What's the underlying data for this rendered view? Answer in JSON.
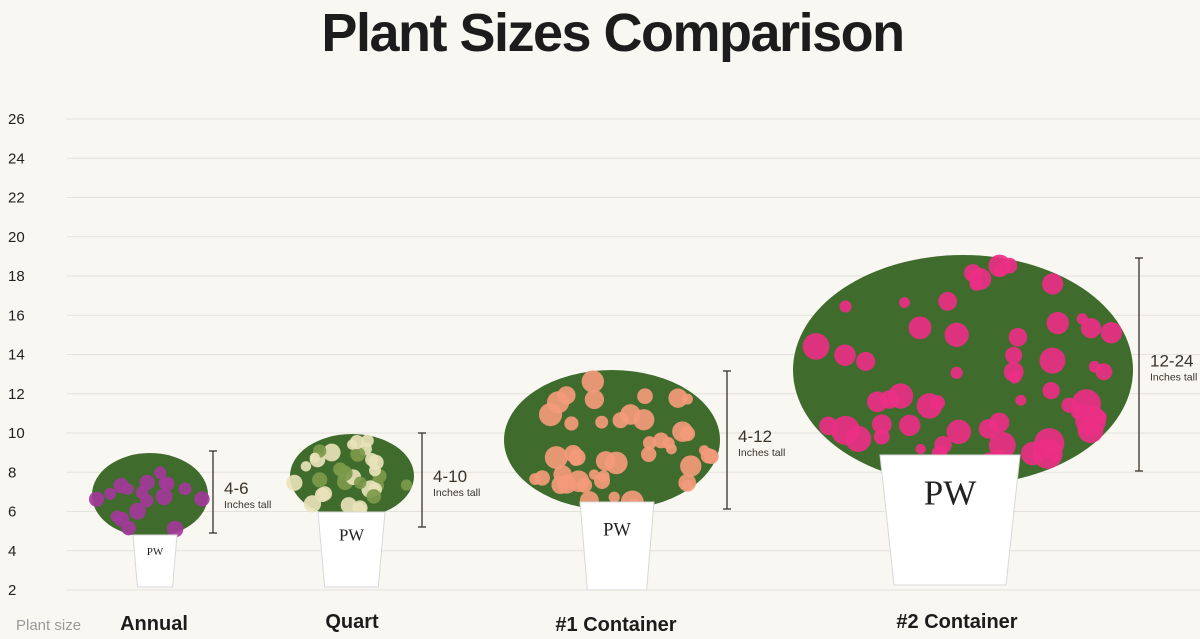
{
  "title": "Plant Sizes Comparison",
  "axis_label": "Plant size",
  "chart_data": {
    "type": "range",
    "title": "Plant Sizes Comparison",
    "xlabel": "Plant size",
    "ylabel": "",
    "y_ticks": [
      2,
      4,
      6,
      8,
      10,
      12,
      14,
      16,
      18,
      20,
      22,
      24,
      26
    ],
    "ylim": [
      2,
      26
    ],
    "grid": true,
    "unit_label": "Inches tall",
    "categories": [
      "Annual",
      "Quart",
      "#1 Container",
      "#2 Container"
    ],
    "ranges": [
      {
        "label": "4-6",
        "low": 4,
        "high": 6
      },
      {
        "label": "4-10",
        "low": 4,
        "high": 10
      },
      {
        "label": "4-12",
        "low": 4,
        "high": 12
      },
      {
        "label": "12-24",
        "low": 12,
        "high": 24
      }
    ],
    "bracket_color": "#3a3328",
    "flower_colors": [
      "#a23a9a",
      "#e9e2b8",
      "#f39a7a",
      "#ea2f86"
    ],
    "pot_logo": "PW PROVEN WINNERS"
  }
}
